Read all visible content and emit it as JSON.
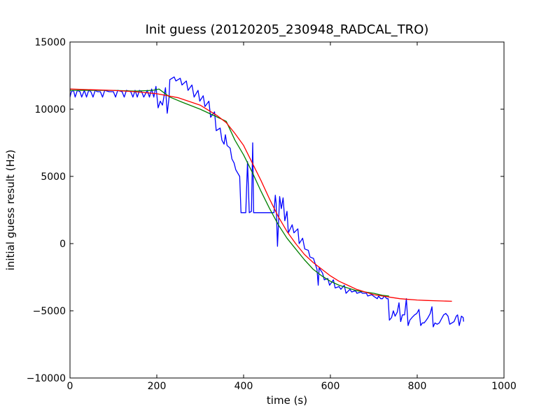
{
  "chart_data": {
    "type": "line",
    "title": "Init guess (20120205_230948_RADCAL_TRO)",
    "xlabel": "time (s)",
    "ylabel": "initial guess result (Hz)",
    "xlim": [
      0,
      1000
    ],
    "ylim": [
      -10000,
      15000
    ],
    "xticks": [
      0,
      200,
      400,
      600,
      800,
      1000
    ],
    "yticks": [
      -10000,
      -5000,
      0,
      5000,
      10000,
      15000
    ],
    "xtick_labels": [
      "0",
      "200",
      "400",
      "600",
      "800",
      "1000"
    ],
    "ytick_labels": [
      "−10000",
      "−5000",
      "0",
      "5000",
      "10000",
      "15000"
    ],
    "grid": false,
    "legend": "none",
    "series": [
      {
        "color": "#0000ff",
        "points": [
          [
            0,
            10900
          ],
          [
            3,
            11300
          ],
          [
            8,
            11400
          ],
          [
            12,
            10900
          ],
          [
            17,
            11400
          ],
          [
            23,
            11300
          ],
          [
            27,
            10900
          ],
          [
            33,
            11400
          ],
          [
            38,
            10900
          ],
          [
            43,
            11400
          ],
          [
            48,
            11300
          ],
          [
            53,
            10900
          ],
          [
            58,
            11400
          ],
          [
            63,
            11300
          ],
          [
            70,
            11300
          ],
          [
            75,
            10900
          ],
          [
            80,
            11400
          ],
          [
            90,
            11300
          ],
          [
            100,
            11300
          ],
          [
            105,
            10900
          ],
          [
            110,
            11400
          ],
          [
            120,
            11300
          ],
          [
            125,
            10900
          ],
          [
            130,
            11400
          ],
          [
            140,
            11300
          ],
          [
            145,
            10900
          ],
          [
            150,
            11400
          ],
          [
            155,
            10900
          ],
          [
            160,
            11400
          ],
          [
            165,
            11300
          ],
          [
            170,
            10900
          ],
          [
            178,
            11400
          ],
          [
            183,
            10900
          ],
          [
            188,
            11500
          ],
          [
            193,
            10900
          ],
          [
            198,
            11700
          ],
          [
            203,
            10100
          ],
          [
            208,
            10600
          ],
          [
            213,
            10300
          ],
          [
            220,
            11600
          ],
          [
            224,
            9700
          ],
          [
            228,
            10800
          ],
          [
            230,
            12200
          ],
          [
            240,
            12400
          ],
          [
            244,
            12100
          ],
          [
            254,
            12300
          ],
          [
            258,
            11800
          ],
          [
            268,
            12100
          ],
          [
            272,
            11400
          ],
          [
            281,
            11800
          ],
          [
            286,
            10900
          ],
          [
            295,
            11400
          ],
          [
            299,
            10600
          ],
          [
            307,
            11000
          ],
          [
            311,
            10200
          ],
          [
            320,
            10600
          ],
          [
            324,
            9400
          ],
          [
            333,
            9800
          ],
          [
            337,
            8400
          ],
          [
            346,
            8600
          ],
          [
            350,
            7700
          ],
          [
            355,
            7400
          ],
          [
            358,
            8100
          ],
          [
            362,
            7300
          ],
          [
            369,
            7100
          ],
          [
            373,
            6300
          ],
          [
            378,
            6000
          ],
          [
            382,
            5500
          ],
          [
            391,
            5000
          ],
          [
            394,
            2300
          ],
          [
            405,
            2300
          ],
          [
            409,
            6100
          ],
          [
            413,
            2300
          ],
          [
            418,
            2400
          ],
          [
            421,
            7500
          ],
          [
            423,
            2300
          ],
          [
            447,
            2300
          ],
          [
            470,
            2300
          ],
          [
            473,
            3600
          ],
          [
            475,
            3000
          ],
          [
            478,
            -200
          ],
          [
            483,
            3500
          ],
          [
            487,
            2600
          ],
          [
            491,
            3400
          ],
          [
            495,
            1700
          ],
          [
            500,
            2400
          ],
          [
            503,
            800
          ],
          [
            512,
            1400
          ],
          [
            516,
            800
          ],
          [
            525,
            1100
          ],
          [
            528,
            0
          ],
          [
            536,
            400
          ],
          [
            541,
            -400
          ],
          [
            549,
            -500
          ],
          [
            553,
            -1000
          ],
          [
            561,
            -1100
          ],
          [
            566,
            -1600
          ],
          [
            569,
            -1900
          ],
          [
            572,
            -3100
          ],
          [
            574,
            -1800
          ],
          [
            582,
            -2200
          ],
          [
            586,
            -2700
          ],
          [
            594,
            -2600
          ],
          [
            598,
            -3100
          ],
          [
            607,
            -2700
          ],
          [
            611,
            -3300
          ],
          [
            620,
            -3200
          ],
          [
            624,
            -3400
          ],
          [
            632,
            -3100
          ],
          [
            636,
            -3700
          ],
          [
            645,
            -3400
          ],
          [
            649,
            -3600
          ],
          [
            658,
            -3500
          ],
          [
            661,
            -3700
          ],
          [
            670,
            -3600
          ],
          [
            674,
            -3700
          ],
          [
            683,
            -3700
          ],
          [
            686,
            -3900
          ],
          [
            695,
            -3800
          ],
          [
            699,
            -3900
          ],
          [
            708,
            -4100
          ],
          [
            711,
            -3900
          ],
          [
            716,
            -4100
          ],
          [
            720,
            -4100
          ],
          [
            724,
            -3900
          ],
          [
            730,
            -4100
          ],
          [
            733,
            -4100
          ],
          [
            736,
            -5700
          ],
          [
            741,
            -5500
          ],
          [
            745,
            -5000
          ],
          [
            749,
            -5400
          ],
          [
            754,
            -5100
          ],
          [
            758,
            -4400
          ],
          [
            762,
            -5800
          ],
          [
            766,
            -5300
          ],
          [
            771,
            -5300
          ],
          [
            775,
            -4100
          ],
          [
            779,
            -6100
          ],
          [
            783,
            -5700
          ],
          [
            788,
            -5500
          ],
          [
            794,
            -5300
          ],
          [
            799,
            -5200
          ],
          [
            804,
            -4900
          ],
          [
            808,
            -6100
          ],
          [
            812,
            -5900
          ],
          [
            816,
            -5900
          ],
          [
            821,
            -5700
          ],
          [
            825,
            -5500
          ],
          [
            830,
            -5200
          ],
          [
            834,
            -4700
          ],
          [
            837,
            -6200
          ],
          [
            841,
            -5900
          ],
          [
            846,
            -6000
          ],
          [
            851,
            -5900
          ],
          [
            856,
            -5600
          ],
          [
            861,
            -5300
          ],
          [
            866,
            -5200
          ],
          [
            871,
            -5400
          ],
          [
            875,
            -6000
          ],
          [
            880,
            -5900
          ],
          [
            885,
            -5800
          ],
          [
            890,
            -5400
          ],
          [
            893,
            -5300
          ],
          [
            897,
            -6100
          ],
          [
            902,
            -5400
          ],
          [
            906,
            -5500
          ],
          [
            907,
            -5800
          ]
        ]
      },
      {
        "color": "#008000",
        "points": [
          [
            0,
            11400
          ],
          [
            50,
            11400
          ],
          [
            100,
            11400
          ],
          [
            150,
            11350
          ],
          [
            190,
            11400
          ],
          [
            205,
            11500
          ],
          [
            230,
            10900
          ],
          [
            260,
            10500
          ],
          [
            300,
            10000
          ],
          [
            340,
            9400
          ],
          [
            360,
            9100
          ],
          [
            380,
            7700
          ],
          [
            400,
            6600
          ],
          [
            420,
            5300
          ],
          [
            440,
            3900
          ],
          [
            460,
            2600
          ],
          [
            480,
            1400
          ],
          [
            500,
            400
          ],
          [
            520,
            -400
          ],
          [
            540,
            -1200
          ],
          [
            560,
            -1900
          ],
          [
            580,
            -2400
          ],
          [
            600,
            -2800
          ],
          [
            620,
            -3100
          ],
          [
            640,
            -3300
          ],
          [
            660,
            -3500
          ],
          [
            680,
            -3600
          ],
          [
            700,
            -3700
          ],
          [
            720,
            -3850
          ],
          [
            735,
            -3900
          ]
        ]
      },
      {
        "color": "#ff0000",
        "points": [
          [
            0,
            11500
          ],
          [
            50,
            11450
          ],
          [
            100,
            11400
          ],
          [
            150,
            11300
          ],
          [
            200,
            11150
          ],
          [
            250,
            10850
          ],
          [
            300,
            10300
          ],
          [
            340,
            9500
          ],
          [
            360,
            9000
          ],
          [
            380,
            8200
          ],
          [
            400,
            7300
          ],
          [
            420,
            6000
          ],
          [
            440,
            4700
          ],
          [
            460,
            3300
          ],
          [
            480,
            2000
          ],
          [
            500,
            900
          ],
          [
            520,
            0
          ],
          [
            540,
            -800
          ],
          [
            560,
            -1400
          ],
          [
            580,
            -1900
          ],
          [
            600,
            -2400
          ],
          [
            620,
            -2800
          ],
          [
            640,
            -3100
          ],
          [
            660,
            -3400
          ],
          [
            680,
            -3600
          ],
          [
            700,
            -3800
          ],
          [
            720,
            -3900
          ],
          [
            740,
            -4000
          ],
          [
            760,
            -4100
          ],
          [
            780,
            -4150
          ],
          [
            800,
            -4200
          ],
          [
            820,
            -4230
          ],
          [
            840,
            -4250
          ],
          [
            860,
            -4270
          ],
          [
            880,
            -4290
          ]
        ]
      }
    ]
  }
}
